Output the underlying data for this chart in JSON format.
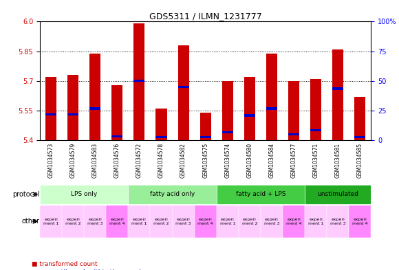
{
  "title": "GDS5311 / ILMN_1231777",
  "samples": [
    "GSM1034573",
    "GSM1034579",
    "GSM1034583",
    "GSM1034576",
    "GSM1034572",
    "GSM1034578",
    "GSM1034582",
    "GSM1034575",
    "GSM1034574",
    "GSM1034580",
    "GSM1034584",
    "GSM1034577",
    "GSM1034571",
    "GSM1034581",
    "GSM1034585"
  ],
  "red_values": [
    5.72,
    5.73,
    5.84,
    5.68,
    5.99,
    5.56,
    5.88,
    5.54,
    5.7,
    5.72,
    5.84,
    5.7,
    5.71,
    5.86,
    5.62
  ],
  "blue_values": [
    5.525,
    5.525,
    5.555,
    5.415,
    5.695,
    5.41,
    5.665,
    5.41,
    5.435,
    5.52,
    5.555,
    5.425,
    5.445,
    5.655,
    5.41
  ],
  "y_min": 5.4,
  "y_max": 6.0,
  "y_ticks": [
    5.4,
    5.55,
    5.7,
    5.85,
    6.0
  ],
  "right_y_ticks": [
    0,
    25,
    50,
    75,
    100
  ],
  "bar_color": "#CC0000",
  "blue_color": "#0000CC",
  "bar_width": 0.5,
  "protocol_groups": [
    {
      "label": "LPS only",
      "start": 0,
      "end": 4,
      "color": "#ccffcc"
    },
    {
      "label": "fatty acid only",
      "start": 4,
      "end": 8,
      "color": "#99ee99"
    },
    {
      "label": "fatty acid + LPS",
      "start": 8,
      "end": 12,
      "color": "#44cc44"
    },
    {
      "label": "unstimulated",
      "start": 12,
      "end": 15,
      "color": "#22aa22"
    }
  ],
  "other_colors": [
    "#ffccff",
    "#ffccff",
    "#ffccff",
    "#ff99ff",
    "#ffccff",
    "#ffccff",
    "#ffccff",
    "#ff99ff",
    "#ffccff",
    "#ffccff",
    "#ffccff",
    "#ff99ff",
    "#ffccff",
    "#ffccff",
    "#ff99ff"
  ],
  "other_labels": [
    "experi\nment 1",
    "experi\nment 2",
    "experi\nment 3",
    "experi\nment 4",
    "experi\nment 1",
    "experi\nment 2",
    "experi\nment 3",
    "experi\nment 4",
    "experi\nment 1",
    "experi\nment 2",
    "experi\nment 3",
    "experi\nment 4",
    "experi\nment 1",
    "experi\nment 3",
    "experi\nment 4"
  ],
  "bg_color": "#ffffff",
  "plot_bg_color": "#ffffff",
  "grid_color": "#000000",
  "sample_bg_color": "#dddddd"
}
